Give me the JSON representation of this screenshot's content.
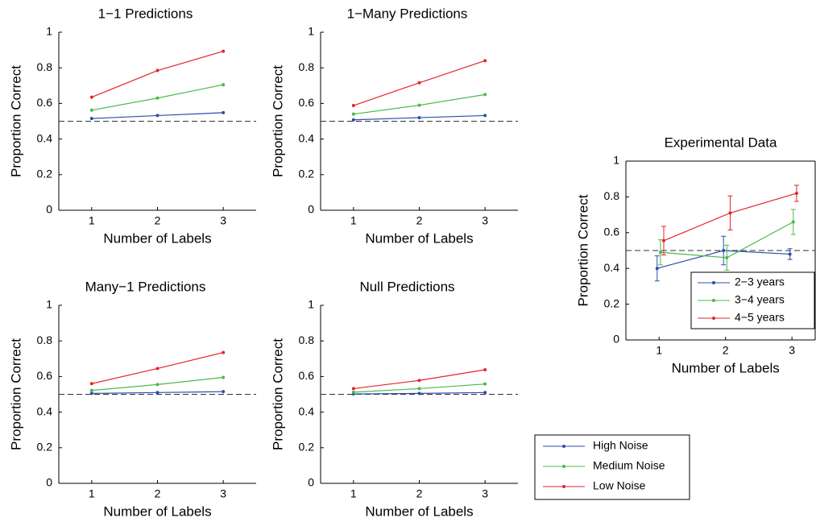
{
  "chart_data": [
    {
      "type": "line",
      "title": "1−1 Predictions",
      "x_label": "Number of Labels",
      "y_label": "Proportion Correct",
      "x": [
        1,
        2,
        3
      ],
      "xlim": [
        0.5,
        3.5
      ],
      "xticks": [
        1,
        2,
        3
      ],
      "ylim": [
        0,
        1
      ],
      "yticks": [
        0,
        0.2,
        0.4,
        0.6,
        0.8,
        1
      ],
      "hline": 0.5,
      "series": [
        {
          "name": "High Noise",
          "color": "#2b4fa8",
          "values": [
            0.515,
            0.532,
            0.548
          ]
        },
        {
          "name": "Medium Noise",
          "color": "#4cb84c",
          "values": [
            0.562,
            0.63,
            0.705
          ]
        },
        {
          "name": "Low Noise",
          "color": "#e3262b",
          "values": [
            0.635,
            0.785,
            0.893
          ]
        }
      ]
    },
    {
      "type": "line",
      "title": "1−Many Predictions",
      "x_label": "Number of Labels",
      "y_label": "Proportion Correct",
      "x": [
        1,
        2,
        3
      ],
      "xlim": [
        0.5,
        3.5
      ],
      "xticks": [
        1,
        2,
        3
      ],
      "ylim": [
        0,
        1
      ],
      "yticks": [
        0,
        0.2,
        0.4,
        0.6,
        0.8,
        1
      ],
      "hline": 0.5,
      "series": [
        {
          "name": "High Noise",
          "color": "#2b4fa8",
          "values": [
            0.508,
            0.52,
            0.532
          ]
        },
        {
          "name": "Medium Noise",
          "color": "#4cb84c",
          "values": [
            0.54,
            0.59,
            0.65
          ]
        },
        {
          "name": "Low Noise",
          "color": "#e3262b",
          "values": [
            0.588,
            0.716,
            0.84
          ]
        }
      ]
    },
    {
      "type": "line",
      "title": "Many−1 Predictions",
      "x_label": "Number of Labels",
      "y_label": "Proportion Correct",
      "x": [
        1,
        2,
        3
      ],
      "xlim": [
        0.5,
        3.5
      ],
      "xticks": [
        1,
        2,
        3
      ],
      "ylim": [
        0,
        1
      ],
      "yticks": [
        0,
        0.2,
        0.4,
        0.6,
        0.8,
        1
      ],
      "hline": 0.5,
      "series": [
        {
          "name": "High Noise",
          "color": "#2b4fa8",
          "values": [
            0.505,
            0.51,
            0.515
          ]
        },
        {
          "name": "Medium Noise",
          "color": "#4cb84c",
          "values": [
            0.522,
            0.555,
            0.595
          ]
        },
        {
          "name": "Low Noise",
          "color": "#e3262b",
          "values": [
            0.56,
            0.645,
            0.735
          ]
        }
      ]
    },
    {
      "type": "line",
      "title": "Null Predictions",
      "x_label": "Number of Labels",
      "y_label": "Proportion Correct",
      "x": [
        1,
        2,
        3
      ],
      "xlim": [
        0.5,
        3.5
      ],
      "xticks": [
        1,
        2,
        3
      ],
      "ylim": [
        0,
        1
      ],
      "yticks": [
        0,
        0.2,
        0.4,
        0.6,
        0.8,
        1
      ],
      "hline": 0.5,
      "series": [
        {
          "name": "High Noise",
          "color": "#2b4fa8",
          "values": [
            0.502,
            0.505,
            0.51
          ]
        },
        {
          "name": "Medium Noise",
          "color": "#4cb84c",
          "values": [
            0.512,
            0.532,
            0.558
          ]
        },
        {
          "name": "Low Noise",
          "color": "#e3262b",
          "values": [
            0.532,
            0.578,
            0.638
          ]
        }
      ]
    },
    {
      "type": "errorline",
      "title": "Experimental Data",
      "x_label": "Number of Labels",
      "y_label": "Proportion Correct",
      "xlim": [
        0.5,
        3.35
      ],
      "xticks": [
        1,
        2,
        3
      ],
      "ylim": [
        0,
        1
      ],
      "yticks": [
        0,
        0.2,
        0.4,
        0.6,
        0.8,
        1
      ],
      "hline": 0.5,
      "box": true,
      "series": [
        {
          "name": "2−3 years",
          "color": "#2b4fa8",
          "x": [
            0.97,
            1.97,
            2.97
          ],
          "values": [
            0.4,
            0.5,
            0.48
          ],
          "errors": [
            0.07,
            0.08,
            0.03
          ]
        },
        {
          "name": "3−4 years",
          "color": "#4cb84c",
          "x": [
            1.02,
            2.02,
            3.02
          ],
          "values": [
            0.49,
            0.46,
            0.66
          ],
          "errors": [
            0.07,
            0.07,
            0.07
          ]
        },
        {
          "name": "4−5 years",
          "color": "#e3262b",
          "x": [
            1.07,
            2.07,
            3.07
          ],
          "values": [
            0.555,
            0.71,
            0.82
          ],
          "errors": [
            0.08,
            0.095,
            0.045
          ]
        }
      ]
    }
  ]
}
